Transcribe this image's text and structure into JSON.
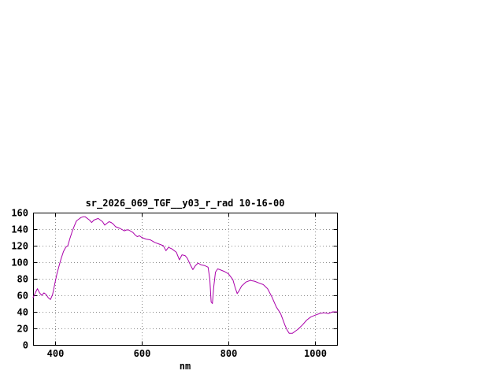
{
  "chart_data": {
    "type": "line",
    "title": "sr_2026_069_TGF__y03_r_rad 10-16-00",
    "xlabel": "nm",
    "ylabel": "",
    "xlim": [
      350,
      1050
    ],
    "ylim": [
      0,
      160
    ],
    "xticks": [
      400,
      600,
      800,
      1000
    ],
    "yticks": [
      0,
      20,
      40,
      60,
      80,
      100,
      120,
      140,
      160
    ],
    "grid": true,
    "legend": "none",
    "line_color": "#aa00aa",
    "grid_color": "#8a8a8a",
    "axis_color": "#000000",
    "background": "#ffffff",
    "series": [
      {
        "name": "sr_2026_069_TGF__y03_r_rad",
        "points": [
          [
            350,
            57
          ],
          [
            355,
            63
          ],
          [
            360,
            68
          ],
          [
            365,
            63
          ],
          [
            370,
            60
          ],
          [
            375,
            63
          ],
          [
            380,
            61
          ],
          [
            385,
            57
          ],
          [
            390,
            55
          ],
          [
            395,
            61
          ],
          [
            400,
            74
          ],
          [
            405,
            86
          ],
          [
            410,
            96
          ],
          [
            415,
            105
          ],
          [
            420,
            113
          ],
          [
            425,
            118
          ],
          [
            430,
            120
          ],
          [
            435,
            129
          ],
          [
            440,
            137
          ],
          [
            445,
            144
          ],
          [
            450,
            150
          ],
          [
            455,
            152
          ],
          [
            460,
            154
          ],
          [
            465,
            155
          ],
          [
            470,
            155
          ],
          [
            475,
            153
          ],
          [
            480,
            151
          ],
          [
            485,
            148
          ],
          [
            490,
            151
          ],
          [
            495,
            152
          ],
          [
            500,
            153
          ],
          [
            505,
            151
          ],
          [
            510,
            149
          ],
          [
            515,
            145
          ],
          [
            520,
            147
          ],
          [
            525,
            149
          ],
          [
            530,
            148
          ],
          [
            535,
            146
          ],
          [
            540,
            143
          ],
          [
            550,
            141
          ],
          [
            560,
            138
          ],
          [
            565,
            139
          ],
          [
            570,
            139
          ],
          [
            580,
            136
          ],
          [
            585,
            133
          ],
          [
            590,
            131
          ],
          [
            595,
            132
          ],
          [
            600,
            130
          ],
          [
            610,
            128
          ],
          [
            620,
            127
          ],
          [
            630,
            124
          ],
          [
            640,
            122
          ],
          [
            650,
            120
          ],
          [
            656,
            114
          ],
          [
            662,
            118
          ],
          [
            670,
            116
          ],
          [
            680,
            112
          ],
          [
            687,
            103
          ],
          [
            693,
            109
          ],
          [
            700,
            108
          ],
          [
            705,
            105
          ],
          [
            712,
            97
          ],
          [
            718,
            91
          ],
          [
            724,
            96
          ],
          [
            730,
            99
          ],
          [
            736,
            97
          ],
          [
            745,
            96
          ],
          [
            753,
            94
          ],
          [
            757,
            80
          ],
          [
            760,
            52
          ],
          [
            763,
            50
          ],
          [
            766,
            70
          ],
          [
            770,
            88
          ],
          [
            775,
            92
          ],
          [
            780,
            91
          ],
          [
            790,
            89
          ],
          [
            800,
            86
          ],
          [
            810,
            79
          ],
          [
            815,
            70
          ],
          [
            820,
            62
          ],
          [
            825,
            66
          ],
          [
            830,
            71
          ],
          [
            840,
            76
          ],
          [
            850,
            78
          ],
          [
            860,
            77
          ],
          [
            870,
            75
          ],
          [
            880,
            73
          ],
          [
            890,
            68
          ],
          [
            900,
            58
          ],
          [
            910,
            46
          ],
          [
            920,
            38
          ],
          [
            930,
            24
          ],
          [
            935,
            18
          ],
          [
            940,
            14
          ],
          [
            947,
            14
          ],
          [
            955,
            17
          ],
          [
            960,
            19
          ],
          [
            970,
            24
          ],
          [
            980,
            30
          ],
          [
            990,
            34
          ],
          [
            1000,
            36
          ],
          [
            1010,
            38
          ],
          [
            1020,
            39
          ],
          [
            1030,
            38
          ],
          [
            1040,
            40
          ],
          [
            1050,
            40
          ]
        ]
      }
    ]
  }
}
